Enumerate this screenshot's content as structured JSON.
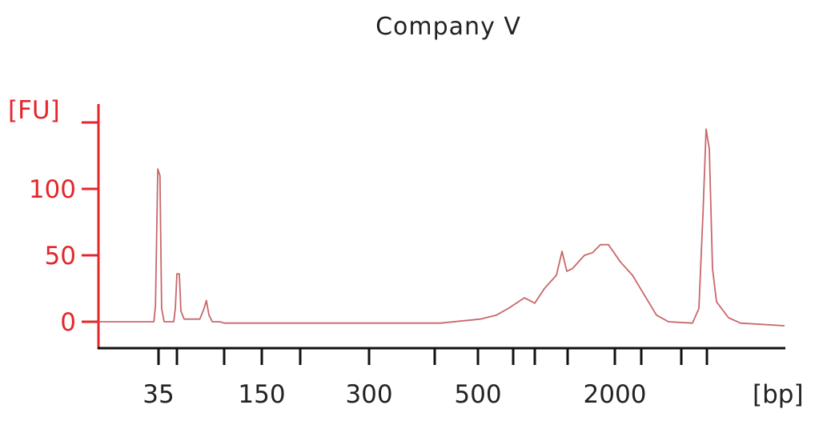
{
  "chart_data": {
    "type": "line",
    "title": "Company V",
    "ylabel": "[FU]",
    "xlabel": "[bp]",
    "x_scale": "ladder (piecewise log)",
    "ladder_ticks_bp": [
      35,
      50,
      100,
      150,
      200,
      300,
      400,
      500,
      600,
      700,
      1000,
      2000,
      3000,
      7000,
      10380
    ],
    "x_tick_labels": [
      {
        "bp": 35,
        "label": "35"
      },
      {
        "bp": 150,
        "label": "150"
      },
      {
        "bp": 300,
        "label": "300"
      },
      {
        "bp": 500,
        "label": "500"
      },
      {
        "bp": 2000,
        "label": "2000"
      }
    ],
    "y_ticks": [
      0,
      50,
      100,
      150
    ],
    "y_tick_labels": [
      "0",
      "50",
      "100"
    ],
    "xlim": [
      11,
      34260
    ],
    "ylim": [
      -20,
      165
    ],
    "grid": false,
    "colors": {
      "trace": "#c9676a",
      "y_axis": "#e4262b",
      "x_axis": "#111111"
    },
    "series": [
      {
        "points": [
          [
            11,
            0
          ],
          [
            32,
            0
          ],
          [
            33,
            12
          ],
          [
            34.5,
            115
          ],
          [
            36,
            110
          ],
          [
            37.2,
            10
          ],
          [
            39,
            0
          ],
          [
            47,
            0
          ],
          [
            48.5,
            10
          ],
          [
            50,
            36
          ],
          [
            51.8,
            36
          ],
          [
            53,
            8
          ],
          [
            55.6,
            2
          ],
          [
            70,
            2
          ],
          [
            74.5,
            10
          ],
          [
            77,
            16
          ],
          [
            80,
            5
          ],
          [
            84,
            0
          ],
          [
            94,
            0
          ],
          [
            100,
            -1
          ],
          [
            412,
            -1
          ],
          [
            506,
            2
          ],
          [
            550,
            5
          ],
          [
            585,
            10
          ],
          [
            650,
            18
          ],
          [
            700,
            14
          ],
          [
            777,
            25
          ],
          [
            885,
            35
          ],
          [
            941,
            53
          ],
          [
            991,
            38
          ],
          [
            1073,
            40
          ],
          [
            1280,
            50
          ],
          [
            1439,
            52
          ],
          [
            1618,
            58
          ],
          [
            1820,
            58
          ],
          [
            2180,
            45
          ],
          [
            2621,
            35
          ],
          [
            3210,
            20
          ],
          [
            4140,
            5
          ],
          [
            5340,
            0
          ],
          [
            8317,
            -1
          ],
          [
            9178,
            10
          ],
          [
            9760,
            80
          ],
          [
            10250,
            145
          ],
          [
            10770,
            130
          ],
          [
            11310,
            40
          ],
          [
            12030,
            15
          ],
          [
            14470,
            3
          ],
          [
            17400,
            -1
          ],
          [
            34260,
            -3
          ]
        ]
      }
    ]
  }
}
